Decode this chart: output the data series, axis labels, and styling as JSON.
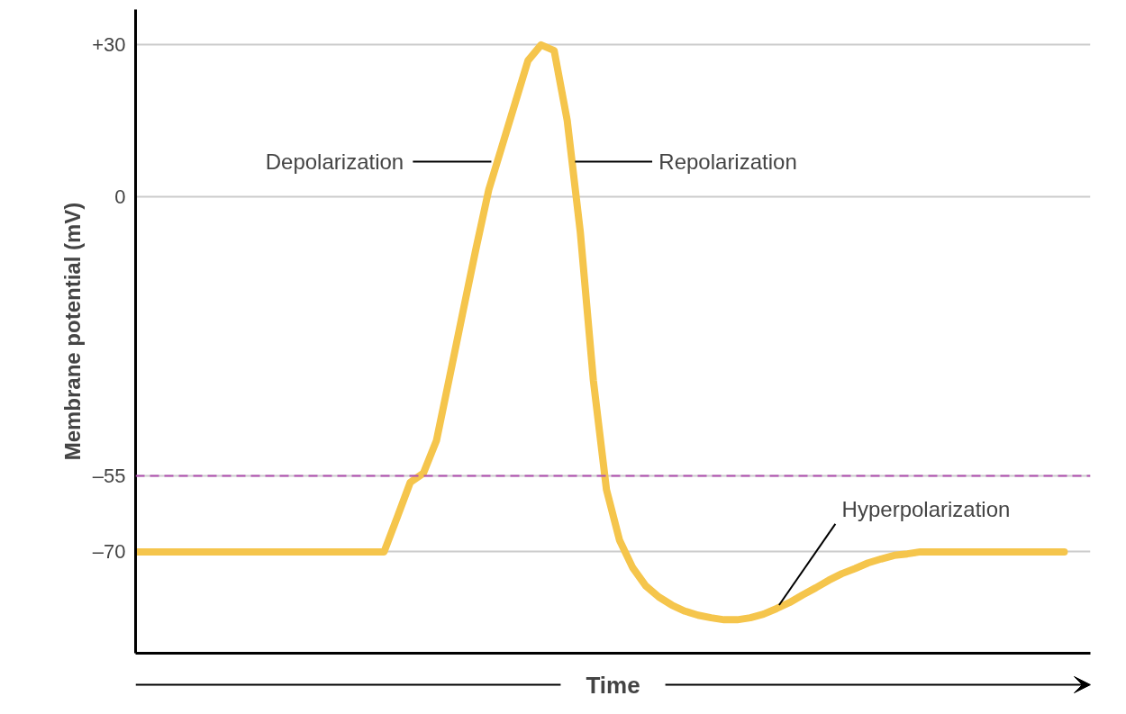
{
  "chart_data": {
    "type": "line",
    "ylabel": "Membrane potential (mV)",
    "xlabel": "Time",
    "categories": [
      null,
      null,
      null,
      null,
      null,
      null,
      null,
      null,
      null,
      null,
      null,
      null,
      null,
      null,
      null,
      null,
      null,
      null,
      null,
      null,
      null,
      null,
      null,
      null,
      null,
      null,
      null,
      null,
      null,
      null,
      null,
      null,
      null,
      null,
      null,
      null,
      null,
      null,
      null,
      null,
      null,
      null,
      null,
      null,
      null,
      null,
      null,
      null,
      null,
      null,
      null,
      null,
      null,
      null,
      null,
      null,
      null,
      null,
      null,
      null,
      null,
      null,
      null,
      null,
      null,
      null,
      null,
      null,
      null,
      null,
      null,
      null
    ],
    "series": [
      {
        "color": "#f5c54c",
        "values": [
          -70,
          -70,
          -70,
          -70,
          -70,
          -70,
          -70,
          -70,
          -70,
          -70,
          -70,
          -70,
          -70,
          -70,
          -70,
          -70,
          -70,
          -70,
          -70,
          -70,
          -63.2,
          -56.3,
          -54.5,
          -48.1,
          -35.6,
          -23.0,
          -10.5,
          1.4,
          9.9,
          18.4,
          26.9,
          30,
          28.9,
          15.1,
          -6.9,
          -36.2,
          -57.7,
          -67.7,
          -73.1,
          -76.7,
          -78.9,
          -80.5,
          -81.7,
          -82.5,
          -83.0,
          -83.4,
          -83.4,
          -83.0,
          -82.3,
          -81.2,
          -80.0,
          -78.5,
          -77.1,
          -75.6,
          -74.3,
          -73.3,
          -72.2,
          -71.4,
          -70.7,
          -70.4,
          -70,
          -70,
          -70,
          -70,
          -70,
          -70,
          -70,
          -70,
          -70,
          -70,
          -70,
          -70
        ]
      }
    ],
    "ylim": [
      -90,
      37
    ],
    "yticks": [
      {
        "value": 30,
        "label": "+30"
      },
      0,
      {
        "value": -55,
        "label": "–55"
      },
      {
        "value": -70,
        "label": "–70"
      }
    ],
    "ref_lines": [
      {
        "axis": "y",
        "value": -55,
        "color": "#b04fb0",
        "line_style": "dashed"
      }
    ],
    "annotations": [
      "Depolarization",
      "Repolarization",
      "Hyperpolarization"
    ],
    "grid": "y",
    "tick_labels": "y",
    "line_style": "solid",
    "marker": "none"
  }
}
